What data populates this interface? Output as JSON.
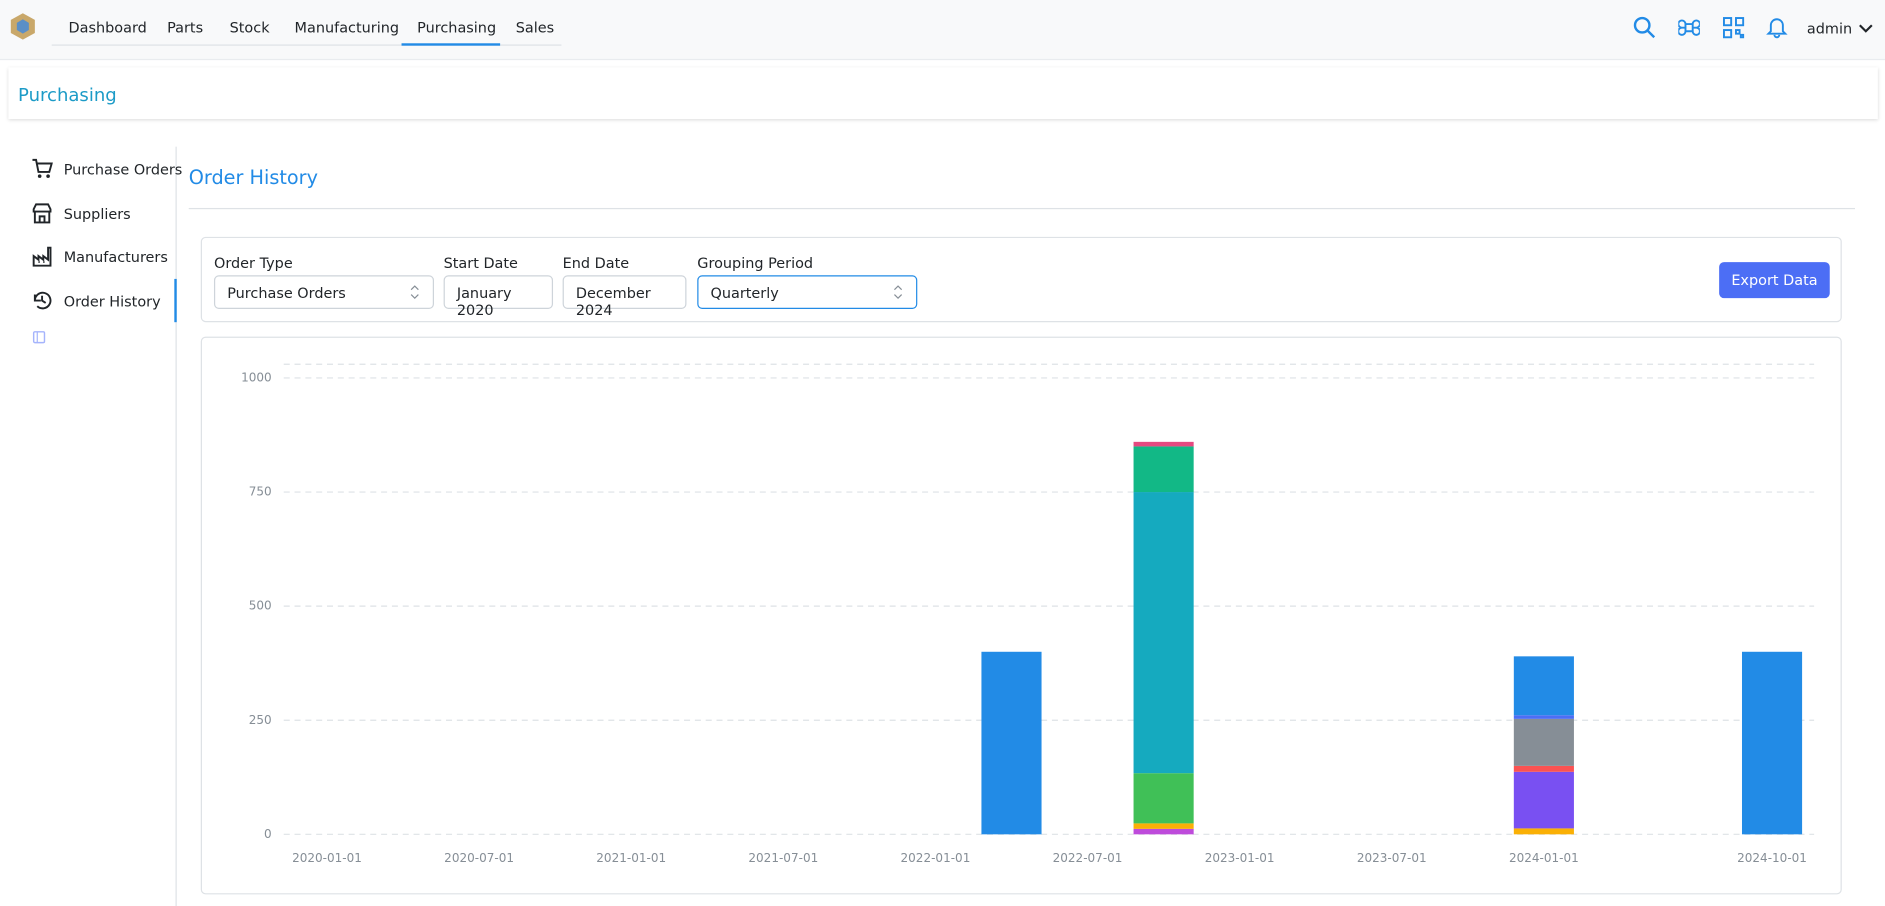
{
  "nav": {
    "items": [
      "Dashboard",
      "Parts",
      "Stock",
      "Manufacturing",
      "Purchasing",
      "Sales"
    ],
    "user": "admin"
  },
  "header": {
    "title": "Purchasing"
  },
  "sidebar": {
    "items": [
      "Purchase Orders",
      "Suppliers",
      "Manufacturers",
      "Order History"
    ]
  },
  "panel": {
    "title": "Order History"
  },
  "filters": [
    {
      "label": "Order Type",
      "value": "Purchase Orders"
    },
    {
      "label": "Start Date",
      "value": "January 2020"
    },
    {
      "label": "End Date",
      "value": "December 2024"
    },
    {
      "label": "Grouping Period",
      "value": "Quarterly"
    }
  ],
  "export_button": "Export Data",
  "chart_data": {
    "type": "stacked_bar",
    "categories": [
      "2020-01-01",
      null,
      "2020-07-01",
      null,
      "2021-01-01",
      null,
      "2021-07-01",
      null,
      "2022-01-01",
      null,
      "2022-07-01",
      null,
      "2023-01-01",
      null,
      "2023-07-01",
      null,
      "2024-01-01",
      null,
      null,
      "2024-10-01"
    ],
    "ylim": [
      0,
      1030
    ],
    "yticks": [
      0,
      250,
      500,
      750,
      1000
    ],
    "grid": true,
    "series": [
      {
        "color": "#be4bdb",
        "values": [
          null,
          null,
          null,
          null,
          null,
          null,
          null,
          null,
          null,
          null,
          null,
          12,
          null,
          null,
          null,
          null,
          null,
          null,
          null,
          null
        ]
      },
      {
        "color": "#fab005",
        "values": [
          null,
          null,
          null,
          null,
          null,
          null,
          null,
          null,
          null,
          null,
          null,
          12,
          null,
          null,
          null,
          null,
          13,
          null,
          null,
          null
        ]
      },
      {
        "color": "#40c057",
        "values": [
          null,
          null,
          null,
          null,
          null,
          null,
          null,
          null,
          null,
          null,
          null,
          110,
          null,
          null,
          null,
          null,
          null,
          null,
          null,
          null
        ]
      },
      {
        "color": "#7950f2",
        "values": [
          null,
          null,
          null,
          null,
          null,
          null,
          null,
          null,
          null,
          null,
          null,
          null,
          null,
          null,
          null,
          null,
          124,
          null,
          null,
          null
        ]
      },
      {
        "color": "#fa5252",
        "values": [
          null,
          null,
          null,
          null,
          null,
          null,
          null,
          null,
          null,
          null,
          null,
          null,
          null,
          null,
          null,
          null,
          13,
          null,
          null,
          null
        ]
      },
      {
        "color": "#15aabf",
        "values": [
          null,
          null,
          null,
          null,
          null,
          null,
          null,
          null,
          null,
          null,
          null,
          616,
          null,
          null,
          null,
          null,
          null,
          null,
          null,
          null
        ]
      },
      {
        "color": "#868e96",
        "values": [
          null,
          null,
          null,
          null,
          null,
          null,
          null,
          null,
          null,
          null,
          null,
          null,
          null,
          null,
          null,
          null,
          103,
          null,
          null,
          null
        ]
      },
      {
        "color": "#4c6ef5",
        "values": [
          null,
          null,
          null,
          null,
          null,
          null,
          null,
          null,
          null,
          null,
          null,
          null,
          null,
          null,
          null,
          null,
          8,
          null,
          null,
          null
        ]
      },
      {
        "color": "#12b886",
        "values": [
          null,
          null,
          null,
          null,
          null,
          null,
          null,
          null,
          null,
          null,
          null,
          100,
          null,
          null,
          null,
          null,
          null,
          null,
          null,
          null
        ]
      },
      {
        "color": "#e64980",
        "values": [
          null,
          null,
          null,
          null,
          null,
          null,
          null,
          null,
          null,
          null,
          null,
          10,
          null,
          null,
          null,
          null,
          null,
          null,
          null,
          null
        ]
      },
      {
        "color": "#228be6",
        "values": [
          null,
          null,
          null,
          null,
          null,
          null,
          null,
          null,
          null,
          400,
          null,
          null,
          null,
          null,
          null,
          null,
          129,
          null,
          null,
          400
        ]
      }
    ]
  }
}
